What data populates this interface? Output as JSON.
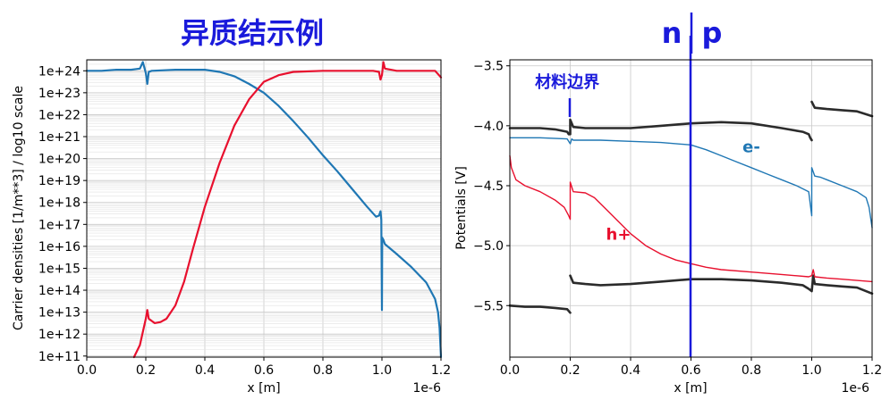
{
  "page_title": "异质结示例",
  "junction_label": {
    "left": "n",
    "right": "p"
  },
  "colors": {
    "electron": "#1f77b4",
    "hole": "#e8102e",
    "band_edge": "#2b2b2b",
    "marker": "#1a1adb",
    "grid": "#c8c8c8"
  },
  "chart_data": [
    {
      "type": "line",
      "xlabel": "x [m]",
      "x_offset_label": "1e-6",
      "ylabel": "Carrier densities [1/m**3] / log10 scale",
      "xlim": [
        0.0,
        1.2
      ],
      "xticks": [
        "0.0",
        "0.2",
        "0.4",
        "0.6",
        "0.8",
        "1.0",
        "1.2"
      ],
      "ylim": [
        10.95,
        24.5
      ],
      "yscale": "log10",
      "yticks": [
        "1e+11",
        "1e+12",
        "1e+13",
        "1e+14",
        "1e+15",
        "1e+16",
        "1e+17",
        "1e+18",
        "1e+19",
        "1e+20",
        "1e+21",
        "1e+22",
        "1e+23",
        "1e+24"
      ],
      "grid": true,
      "series": [
        {
          "color": "#1f77b4",
          "x": [
            0.0,
            0.05,
            0.1,
            0.15,
            0.18,
            0.19,
            0.2,
            0.205,
            0.21,
            0.22,
            0.3,
            0.4,
            0.45,
            0.5,
            0.55,
            0.6,
            0.65,
            0.7,
            0.75,
            0.8,
            0.85,
            0.9,
            0.95,
            0.98,
            0.99,
            0.995,
            0.998,
            1.0,
            1.001,
            1.005,
            1.01,
            1.05,
            1.1,
            1.15,
            1.18,
            1.19,
            1.195,
            1.2
          ],
          "values": [
            24.0,
            24.0,
            24.05,
            24.05,
            24.1,
            24.4,
            23.9,
            23.4,
            23.95,
            24.0,
            24.05,
            24.05,
            23.95,
            23.75,
            23.4,
            23.0,
            22.4,
            21.7,
            20.95,
            20.15,
            19.4,
            18.6,
            17.8,
            17.35,
            17.4,
            17.6,
            17.2,
            13.1,
            16.4,
            16.3,
            16.1,
            15.65,
            15.05,
            14.35,
            13.6,
            13.0,
            12.3,
            10.95
          ]
        },
        {
          "color": "#e8102e",
          "x": [
            0.16,
            0.18,
            0.2,
            0.205,
            0.21,
            0.23,
            0.25,
            0.27,
            0.3,
            0.33,
            0.36,
            0.4,
            0.45,
            0.5,
            0.55,
            0.6,
            0.65,
            0.7,
            0.8,
            0.9,
            0.97,
            0.99,
            0.995,
            1.0,
            1.005,
            1.01,
            1.05,
            1.1,
            1.15,
            1.18,
            1.2
          ],
          "values": [
            10.95,
            11.5,
            12.7,
            13.1,
            12.7,
            12.5,
            12.55,
            12.7,
            13.3,
            14.4,
            15.9,
            17.8,
            19.8,
            21.5,
            22.7,
            23.5,
            23.8,
            23.95,
            24.0,
            24.0,
            24.0,
            23.95,
            23.6,
            23.8,
            24.4,
            24.1,
            24.0,
            24.0,
            24.0,
            24.0,
            23.7
          ]
        }
      ]
    },
    {
      "type": "line",
      "xlabel": "x [m]",
      "x_offset_label": "1e-6",
      "ylabel": "Potentials [V]",
      "xlim": [
        0.0,
        1.2
      ],
      "xticks": [
        "0.0",
        "0.2",
        "0.4",
        "0.6",
        "0.8",
        "1.0",
        "1.2"
      ],
      "ylim": [
        -5.93,
        -3.45
      ],
      "yticks": [
        "-3.5",
        "-4.0",
        "-4.5",
        "-5.0",
        "-5.5"
      ],
      "grid": true,
      "annotations": [
        {
          "text": "材料边界",
          "x": 0.19,
          "y": -3.68,
          "color": "#1a1adb"
        },
        {
          "text": "e-",
          "x": 0.8,
          "y": -4.22,
          "color": "#1f77b4"
        },
        {
          "text": "h+",
          "x": 0.36,
          "y": -4.95,
          "color": "#e8102e"
        }
      ],
      "series": [
        {
          "color": "#2b2b2b",
          "x": [
            0.0,
            0.1,
            0.15,
            0.19,
            0.195,
            0.2,
            0.2,
            0.21,
            0.25,
            0.3,
            0.4,
            0.5,
            0.6,
            0.7,
            0.8,
            0.9,
            0.97,
            0.99,
            0.995,
            1.0
          ],
          "values": [
            -4.02,
            -4.02,
            -4.03,
            -4.05,
            -4.07,
            -4.07,
            -3.95,
            -4.01,
            -4.02,
            -4.02,
            -4.02,
            -4.0,
            -3.98,
            -3.97,
            -3.98,
            -4.02,
            -4.05,
            -4.07,
            -4.1,
            -4.12
          ]
        },
        {
          "color": "#2b2b2b",
          "x": [
            1.0,
            1.01,
            1.05,
            1.1,
            1.15,
            1.2
          ],
          "values": [
            -3.8,
            -3.85,
            -3.86,
            -3.87,
            -3.88,
            -3.92
          ]
        },
        {
          "color": "#2b2b2b",
          "x": [
            0.0,
            0.05,
            0.1,
            0.15,
            0.19,
            0.2
          ],
          "values": [
            -5.5,
            -5.51,
            -5.51,
            -5.52,
            -5.53,
            -5.56
          ]
        },
        {
          "color": "#2b2b2b",
          "x": [
            0.2,
            0.21,
            0.25,
            0.3,
            0.4,
            0.5,
            0.6,
            0.7,
            0.8,
            0.9,
            0.97,
            0.99,
            1.0,
            1.005,
            1.01,
            1.05,
            1.1,
            1.15,
            1.2
          ],
          "values": [
            -5.25,
            -5.31,
            -5.32,
            -5.33,
            -5.32,
            -5.3,
            -5.28,
            -5.28,
            -5.29,
            -5.31,
            -5.33,
            -5.36,
            -5.38,
            -5.25,
            -5.32,
            -5.33,
            -5.34,
            -5.35,
            -5.4
          ]
        },
        {
          "color": "#1f77b4",
          "x": [
            0.0,
            0.1,
            0.19,
            0.2,
            0.205,
            0.21,
            0.3,
            0.4,
            0.5,
            0.6,
            0.65,
            0.7,
            0.75,
            0.8,
            0.85,
            0.9,
            0.95,
            0.99,
            1.0,
            1.0,
            1.01,
            1.03,
            1.05,
            1.1,
            1.15,
            1.18,
            1.19,
            1.2
          ],
          "values": [
            -4.1,
            -4.1,
            -4.11,
            -4.15,
            -4.11,
            -4.12,
            -4.12,
            -4.13,
            -4.14,
            -4.16,
            -4.2,
            -4.25,
            -4.3,
            -4.35,
            -4.4,
            -4.45,
            -4.5,
            -4.55,
            -4.75,
            -4.35,
            -4.42,
            -4.43,
            -4.45,
            -4.5,
            -4.55,
            -4.6,
            -4.68,
            -4.85
          ]
        },
        {
          "color": "#e8102e",
          "x": [
            0.0,
            0.005,
            0.02,
            0.05,
            0.1,
            0.15,
            0.18,
            0.195,
            0.2,
            0.2,
            0.21,
            0.25,
            0.28,
            0.32,
            0.36,
            0.4,
            0.45,
            0.5,
            0.55,
            0.6,
            0.65,
            0.7,
            0.8,
            0.9,
            0.99,
            1.0,
            1.005,
            1.01,
            1.05,
            1.1,
            1.15,
            1.2
          ],
          "values": [
            -4.25,
            -4.35,
            -4.45,
            -4.5,
            -4.55,
            -4.62,
            -4.68,
            -4.75,
            -4.78,
            -4.47,
            -4.55,
            -4.56,
            -4.6,
            -4.7,
            -4.8,
            -4.9,
            -5.0,
            -5.07,
            -5.12,
            -5.15,
            -5.18,
            -5.2,
            -5.22,
            -5.24,
            -5.26,
            -5.25,
            -5.2,
            -5.26,
            -5.27,
            -5.28,
            -5.29,
            -5.3
          ]
        }
      ]
    }
  ]
}
